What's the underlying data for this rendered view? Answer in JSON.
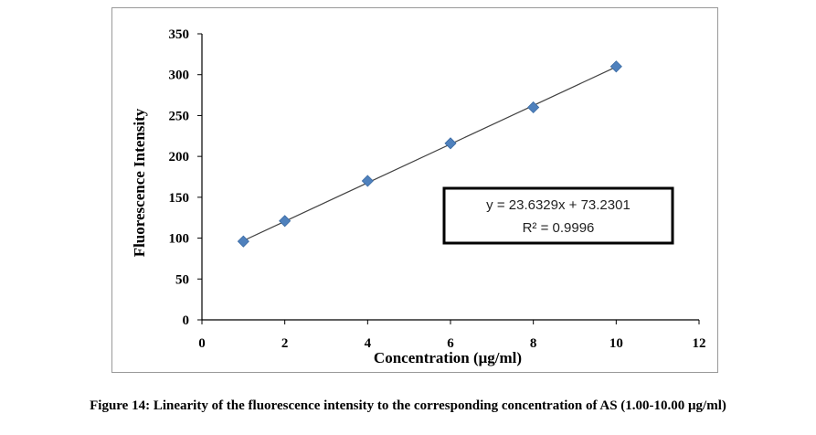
{
  "caption": "Figure 14: Linearity of the fluorescence intensity to the corresponding concentration of AS (1.00-10.00 μg/ml)",
  "chart_data": {
    "type": "scatter",
    "xlabel": "Concentration (μg/ml)",
    "ylabel": "Fluorescence Intensity",
    "xlim": [
      0,
      12
    ],
    "ylim": [
      0,
      350
    ],
    "x_ticks": [
      0,
      2,
      4,
      6,
      8,
      10,
      12
    ],
    "y_ticks": [
      0,
      50,
      100,
      150,
      200,
      250,
      300,
      350
    ],
    "grid": false,
    "series": [
      {
        "x": [
          1,
          2,
          4,
          6,
          8,
          10
        ],
        "y": [
          96,
          121,
          170,
          216,
          260,
          310
        ],
        "marker": "diamond",
        "color": "#4f81bd"
      }
    ],
    "trendline": {
      "slope": 23.6329,
      "intercept": 73.2301,
      "x_range": [
        1,
        10
      ],
      "color": "#404040"
    },
    "annotation": {
      "equation": "y = 23.6329x + 73.2301",
      "r_squared": "R² = 0.9996"
    }
  }
}
